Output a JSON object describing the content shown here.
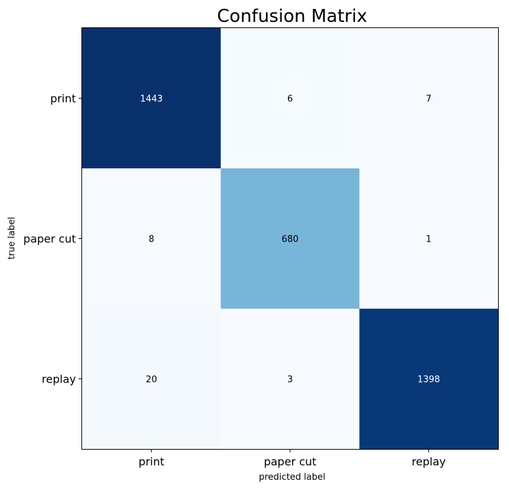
{
  "chart_data": {
    "type": "heatmap",
    "title": "Confusion Matrix",
    "xlabel": "predicted label",
    "ylabel": "true label",
    "x_categories": [
      "print",
      "paper cut",
      "replay"
    ],
    "y_categories": [
      "print",
      "paper cut",
      "replay"
    ],
    "values": [
      [
        1443,
        6,
        7
      ],
      [
        8,
        680,
        1
      ],
      [
        20,
        3,
        1398
      ]
    ],
    "colormap": "Blues",
    "vmin": 1,
    "vmax": 1443,
    "grid": false,
    "legend": "none"
  }
}
